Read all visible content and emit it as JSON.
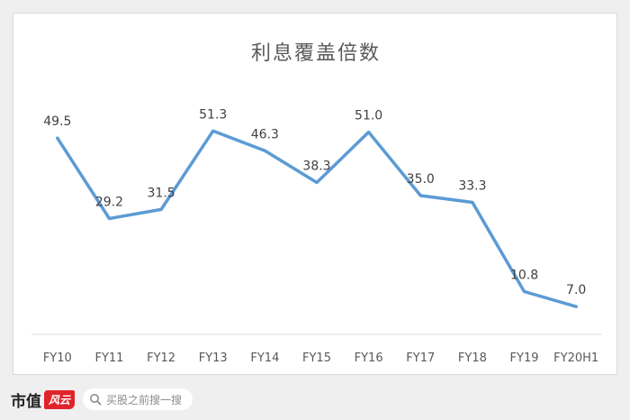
{
  "chart_data": {
    "type": "line",
    "title": "利息覆盖倍数",
    "categories": [
      "FY10",
      "FY11",
      "FY12",
      "FY13",
      "FY14",
      "FY15",
      "FY16",
      "FY17",
      "FY18",
      "FY19",
      "FY20H1"
    ],
    "series": [
      {
        "values": [
          49.5,
          29.2,
          31.5,
          51.3,
          46.3,
          38.3,
          51.0,
          35.0,
          33.3,
          10.8,
          7.0
        ],
        "labels": [
          "49.5",
          "29.2",
          "31.5",
          "51.3",
          "46.3",
          "38.3",
          "51.0",
          "35.0",
          "33.3",
          "10.8",
          "7.0"
        ]
      }
    ],
    "ylim": [
      0,
      60
    ],
    "grid": false,
    "line_color": "#5b9bd5"
  },
  "footer": {
    "brand": "市值",
    "brand_seal": "风云",
    "search_placeholder": "买股之前搜一搜",
    "search_icon": "search-icon"
  }
}
